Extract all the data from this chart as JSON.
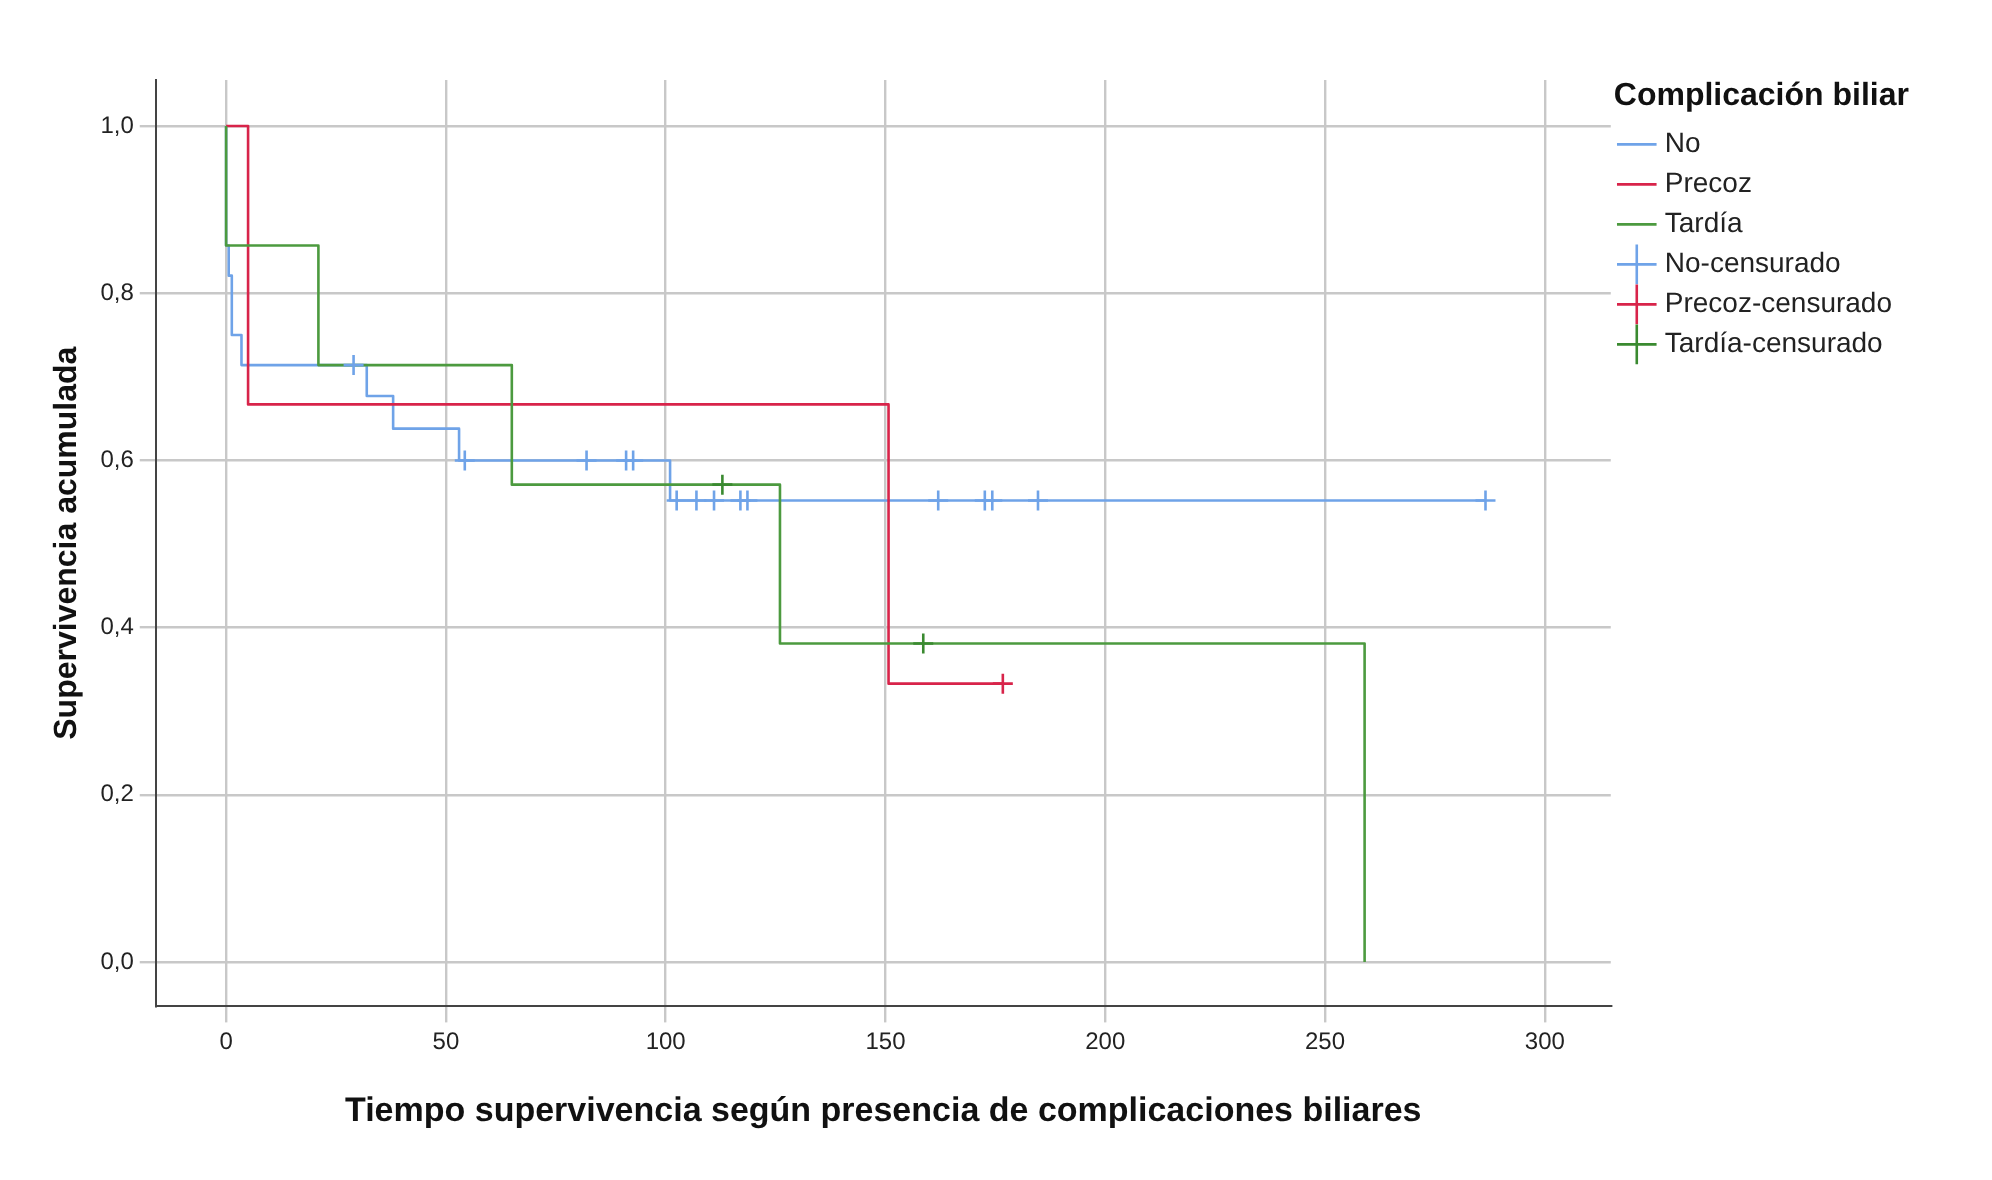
{
  "chart_data": {
    "type": "step",
    "xlabel": "Tiempo supervivencia según presencia de complicaciones biliares",
    "ylabel": "Supervivencia acumulada",
    "legend_title": "Complicación biliar",
    "xlim": [
      -16,
      315
    ],
    "xticks": [
      0,
      50,
      100,
      150,
      200,
      250,
      300
    ],
    "ylim": [
      -0.053,
      1.055
    ],
    "yticks": [
      {
        "value": 0,
        "label": "0,0"
      },
      {
        "value": 0.2,
        "label": "0,2"
      },
      {
        "value": 0.4,
        "label": "0,4"
      },
      {
        "value": 0.6,
        "label": "0,6"
      },
      {
        "value": 0.8,
        "label": "0,8"
      },
      {
        "value": 1,
        "label": "1,0"
      }
    ],
    "grid": true,
    "legend": "right",
    "series": [
      {
        "name": "No",
        "marker": "none",
        "color": "#6fa3e8",
        "x": [
          0,
          0,
          0.6,
          1.3,
          3.5,
          32,
          38,
          53,
          101,
          286.5
        ],
        "values": [
          1,
          0.857,
          0.821,
          0.75,
          0.714,
          0.677,
          0.638,
          0.6,
          0.552,
          0.552
        ]
      },
      {
        "name": "Precoz",
        "marker": "none",
        "color": "#d8244a",
        "x": [
          0,
          5,
          150.7,
          176.7
        ],
        "values": [
          1,
          0.667,
          0.333,
          0.333
        ]
      },
      {
        "name": "Tardía",
        "marker": "none",
        "color": "#4c9a3f",
        "x": [
          0,
          0,
          21,
          65,
          126,
          259,
          259
        ],
        "values": [
          1,
          0.857,
          0.714,
          0.571,
          0.381,
          0.381,
          0
        ]
      },
      {
        "name": "No-censurado",
        "type": "scatter",
        "marker": "cross",
        "color": "#6fa3e8",
        "x": [
          29,
          54.3,
          82,
          91,
          92.6,
          102.5,
          107,
          111,
          117,
          118.6,
          162,
          172.6,
          174.3,
          184.7,
          286.5
        ],
        "values": [
          0.714,
          0.6,
          0.6,
          0.6,
          0.6,
          0.552,
          0.552,
          0.552,
          0.552,
          0.552,
          0.552,
          0.552,
          0.552,
          0.552,
          0.552
        ]
      },
      {
        "name": "Precoz-censurado",
        "type": "scatter",
        "marker": "cross",
        "color": "#d8244a",
        "x": [
          176.7
        ],
        "values": [
          0.333
        ]
      },
      {
        "name": "Tardía-censurado",
        "type": "scatter",
        "marker": "cross",
        "color": "#3a8a30",
        "x": [
          112.9,
          158.6
        ],
        "values": [
          0.571,
          0.381
        ]
      }
    ]
  }
}
